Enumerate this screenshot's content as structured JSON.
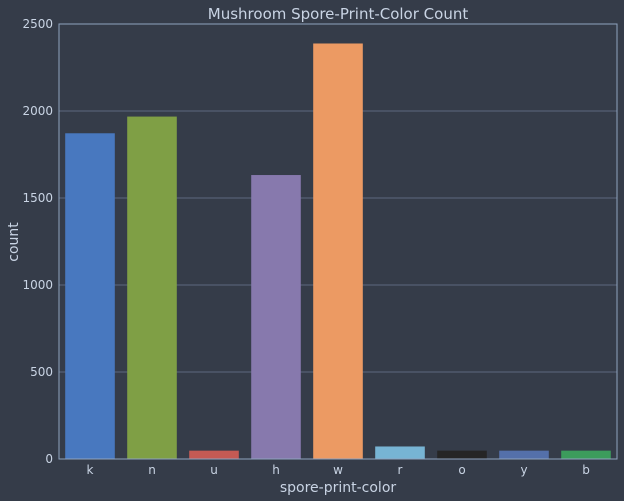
{
  "chart_data": {
    "type": "bar",
    "title": "Mushroom Spore-Print-Color Count",
    "xlabel": "spore-print-color",
    "ylabel": "count",
    "categories": [
      "k",
      "n",
      "u",
      "h",
      "w",
      "r",
      "o",
      "y",
      "b"
    ],
    "values": [
      1872,
      1968,
      48,
      1632,
      2388,
      72,
      48,
      48,
      48
    ],
    "colors": [
      "#4878bf",
      "#7f9f45",
      "#c45a54",
      "#8779ad",
      "#ec9a63",
      "#77b4d4",
      "#252525",
      "#5470aa",
      "#3c9c5c"
    ],
    "ylim": [
      0,
      2500
    ],
    "yticks": [
      0,
      500,
      1000,
      1500,
      2000,
      2500
    ],
    "grid": "horizontal"
  }
}
